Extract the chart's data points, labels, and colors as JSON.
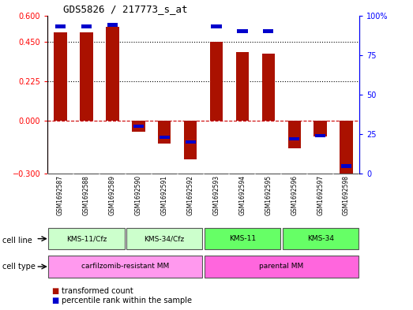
{
  "title": "GDS5826 / 217773_s_at",
  "samples": [
    "GSM1692587",
    "GSM1692588",
    "GSM1692589",
    "GSM1692590",
    "GSM1692591",
    "GSM1692592",
    "GSM1692593",
    "GSM1692594",
    "GSM1692595",
    "GSM1692596",
    "GSM1692597",
    "GSM1692598"
  ],
  "transformed_count": [
    0.505,
    0.505,
    0.535,
    -0.06,
    -0.13,
    -0.22,
    0.45,
    0.39,
    0.385,
    -0.155,
    -0.09,
    -0.32
  ],
  "percentile_rank": [
    93,
    93,
    94,
    30,
    23,
    20,
    93,
    90,
    90,
    22,
    24,
    5
  ],
  "ylim_left": [
    -0.3,
    0.6
  ],
  "ylim_right": [
    0,
    100
  ],
  "yticks_left": [
    -0.3,
    0,
    0.225,
    0.45,
    0.6
  ],
  "yticks_right": [
    0,
    25,
    50,
    75,
    100
  ],
  "hlines": [
    0.225,
    0.45
  ],
  "cell_line_groups": [
    {
      "label": "KMS-11/Cfz",
      "start": 0,
      "end": 3,
      "color": "#ccffcc"
    },
    {
      "label": "KMS-34/Cfz",
      "start": 3,
      "end": 6,
      "color": "#ccffcc"
    },
    {
      "label": "KMS-11",
      "start": 6,
      "end": 9,
      "color": "#66ff66"
    },
    {
      "label": "KMS-34",
      "start": 9,
      "end": 12,
      "color": "#66ff66"
    }
  ],
  "cell_type_groups": [
    {
      "label": "carfilzomib-resistant MM",
      "start": 0,
      "end": 6,
      "color": "#ff99ee"
    },
    {
      "label": "parental MM",
      "start": 6,
      "end": 12,
      "color": "#ff66dd"
    }
  ],
  "bar_color": "#aa1100",
  "dot_color": "#0000cc",
  "zero_line_color": "#cc0000",
  "grid_color": "#000000",
  "bg_color": "#ffffff",
  "sample_bg_color": "#cccccc",
  "sample_border_color": "#ffffff"
}
